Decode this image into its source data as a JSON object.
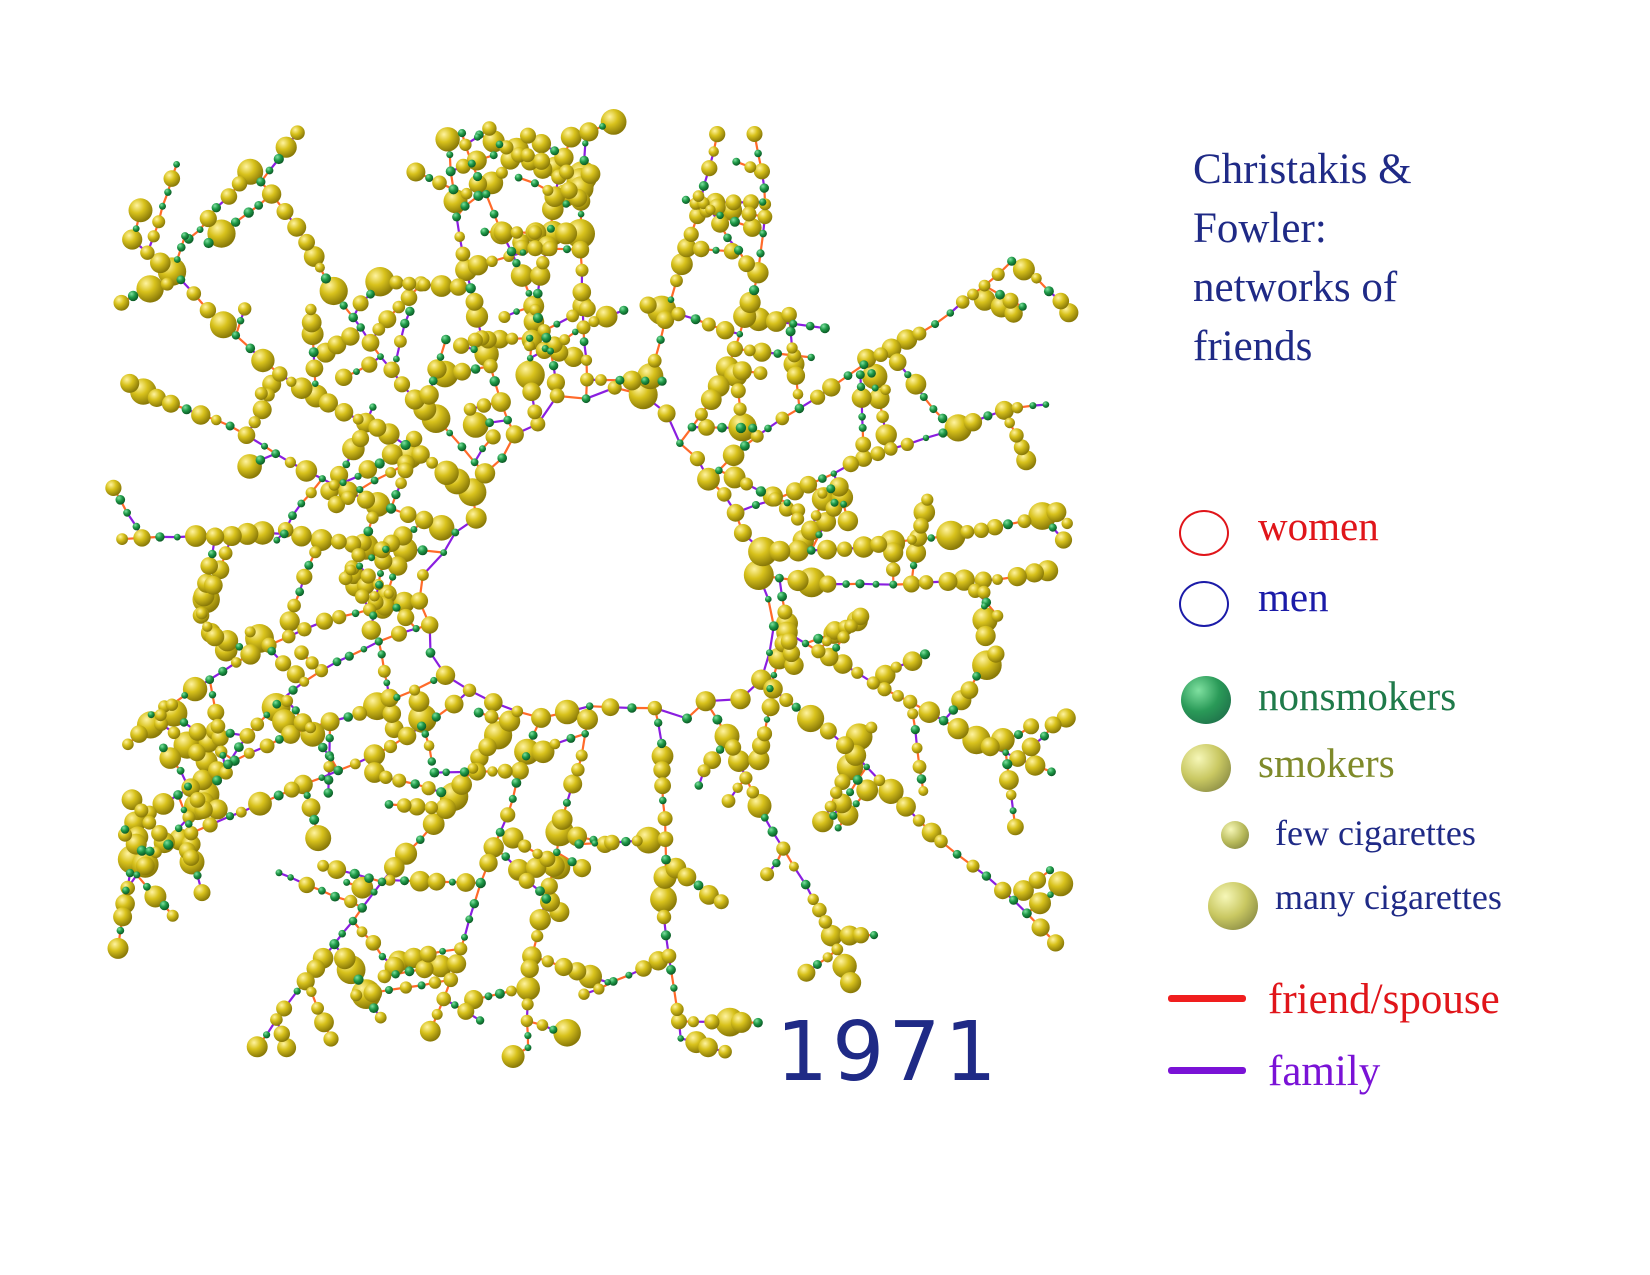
{
  "title_lines": [
    "Christakis &",
    "Fowler:",
    "networks of",
    "friends"
  ],
  "year": "1971",
  "legend": {
    "women": {
      "label": "women",
      "color": "#e0151a"
    },
    "men": {
      "label": "men",
      "color": "#1b1ba8"
    },
    "nonsmokers": {
      "label": "nonsmokers",
      "color": "#1f7a4a"
    },
    "smokers": {
      "label": "smokers",
      "color": "#7f8a2a"
    },
    "few": {
      "label": "few cigarettes",
      "color": "#1f2a86"
    },
    "many": {
      "label": "many cigarettes",
      "color": "#1f2a86"
    },
    "friend": {
      "label": "friend/spouse",
      "color": "#e0151a"
    },
    "family": {
      "label": "family",
      "color": "#7a12d6"
    }
  },
  "colors": {
    "smoker_node": "#c9b41a",
    "nonsmoker_node": "#1e8a3c",
    "friend_edge": "#ff6a2a",
    "family_edge": "#8a1ee0",
    "title": "#1f2a86"
  }
}
